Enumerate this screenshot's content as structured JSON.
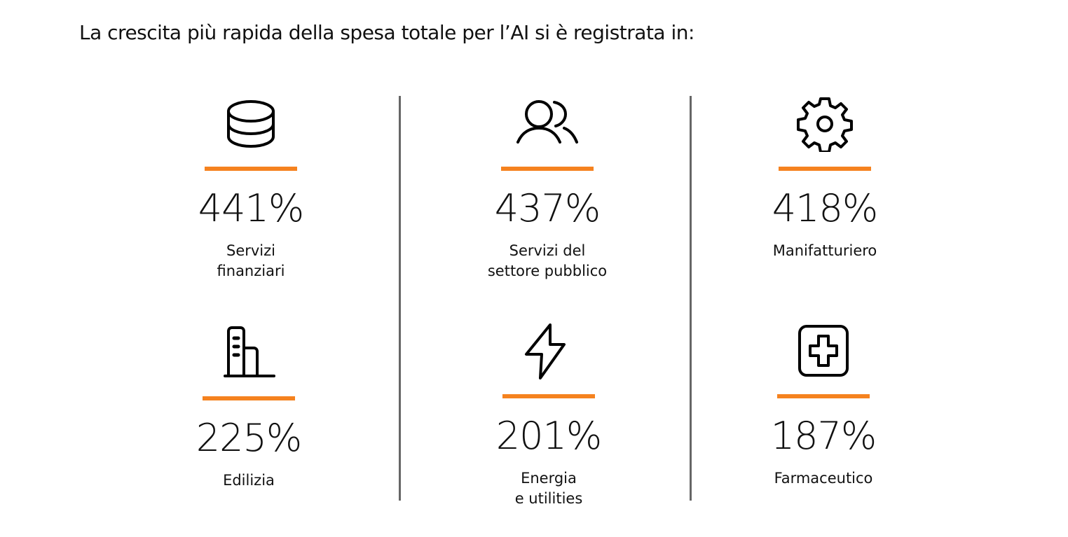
{
  "title": "La crescita più rapida della spesa totale per l’AI si è registrata in:",
  "accent_color": "#f5821f",
  "sectors": [
    {
      "icon": "database-icon",
      "value": "441%",
      "label": "Servizi\nfinanziari"
    },
    {
      "icon": "users-icon",
      "value": "437%",
      "label": "Servizi del\nsettore pubblico"
    },
    {
      "icon": "gear-icon",
      "value": "418%",
      "label": "Manifatturiero"
    },
    {
      "icon": "building-icon",
      "value": "225%",
      "label": "Edilizia"
    },
    {
      "icon": "lightning-icon",
      "value": "201%",
      "label": "Energia\ne utilities"
    },
    {
      "icon": "medical-cross-icon",
      "value": "187%",
      "label": "Farmaceutico"
    }
  ]
}
